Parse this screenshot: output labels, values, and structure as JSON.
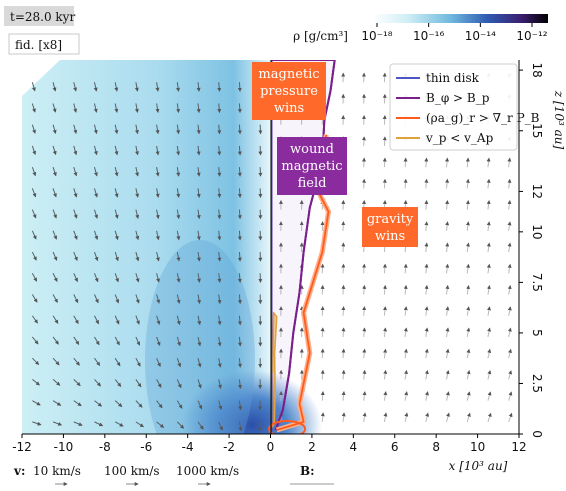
{
  "chart_data": {
    "type": "heatmap",
    "time_label": "t=28.0 kyr",
    "model_label": "fid. [x8]",
    "xlabel": "x [10³ au]",
    "ylabel": "z [10³ au]",
    "xlim": [
      -12,
      12
    ],
    "ylim": [
      0,
      18.5
    ],
    "xticks": [
      -12,
      -10,
      -8,
      -6,
      -4,
      -2,
      0,
      2,
      4,
      6,
      8,
      10,
      12
    ],
    "xtick_labels": [
      "-12",
      "-10",
      "-8",
      "-6",
      "-4",
      "-2",
      "0",
      "2",
      "4",
      "6",
      "8",
      "10",
      "12"
    ],
    "yticks": [
      0,
      2.5,
      5,
      7.5,
      10,
      12,
      15,
      18
    ],
    "ytick_labels": [
      "0",
      "2.5",
      "5",
      "7.5",
      "10",
      "12",
      "15",
      "18"
    ],
    "colorbar": {
      "label": "ρ [g/cm³]",
      "scale": "log",
      "ticks": [
        "10⁻¹⁸",
        "10⁻¹⁶",
        "10⁻¹⁴",
        "10⁻¹²"
      ],
      "colors": [
        "#ffffff",
        "#cfeef6",
        "#6db7dd",
        "#2f5cb3",
        "#3a1e6e",
        "#000000"
      ]
    },
    "legend": {
      "placement": "top-right",
      "entries": [
        {
          "label": "thin disk",
          "color": "#4a56c4"
        },
        {
          "label": "B_φ > B_p",
          "color": "#7a1f8c"
        },
        {
          "label": "(ρa_g)_r > ∇_r P_B",
          "color": "#ff5b1f"
        },
        {
          "label": "v_p < v_Ap",
          "color": "#e0a23a"
        }
      ]
    },
    "annotations": [
      {
        "lines": [
          "magnetic",
          "pressure",
          "wins"
        ],
        "color": "#ff6a2b"
      },
      {
        "lines": [
          "wound",
          "magnetic",
          "field"
        ],
        "color": "#8a2c9e"
      },
      {
        "lines": [
          "gravity",
          "wins"
        ],
        "color": "#ff6a2b"
      }
    ],
    "velocity_key": {
      "label": "v:",
      "entries": [
        "10 km/s",
        "100 km/s",
        "1000 km/s"
      ]
    },
    "field_key": {
      "label": "B:"
    },
    "contours": {
      "toroidal_dominated": [
        [
          0.25,
          0.2
        ],
        [
          0.6,
          1.2
        ],
        [
          0.9,
          3
        ],
        [
          1.1,
          5
        ],
        [
          1.4,
          7
        ],
        [
          1.6,
          9
        ],
        [
          1.9,
          11.2
        ],
        [
          2.5,
          13.5
        ],
        [
          2.6,
          15.5
        ],
        [
          2.9,
          17
        ],
        [
          3.1,
          18.5
        ]
      ],
      "gravity_wins": [
        [
          0.3,
          0.2
        ],
        [
          1.6,
          0.6
        ],
        [
          1.4,
          1.5
        ],
        [
          1.9,
          4
        ],
        [
          1.6,
          6
        ],
        [
          2.5,
          9
        ],
        [
          2.8,
          11
        ],
        [
          2.1,
          12.4
        ],
        [
          2.7,
          14.8
        ]
      ],
      "sub_alfvenic": [
        [
          0.05,
          0.3
        ],
        [
          0.18,
          0.5
        ],
        [
          0.22,
          2
        ],
        [
          0.2,
          4
        ],
        [
          0.3,
          5.8
        ],
        [
          0.15,
          6
        ],
        [
          0.1,
          3
        ]
      ]
    }
  }
}
